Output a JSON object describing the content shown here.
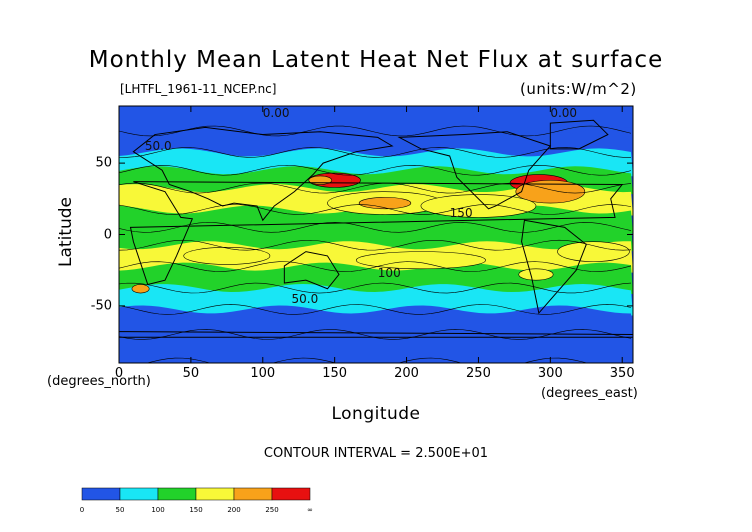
{
  "chart_data": {
    "type": "heatmap",
    "title": "Monthly Mean Latent Heat Net Flux at surface",
    "file": "[LHTFL_1961-11_NCEP.nc]",
    "units": "(units:W/m^2)",
    "xlabel": "Longitude",
    "ylabel": "Latitude",
    "x_unit_label": "(degrees_east)",
    "y_unit_label": "(degrees_north)",
    "xlim": [
      0,
      357.5
    ],
    "ylim": [
      -90,
      90
    ],
    "x_ticks": [
      0,
      50,
      100,
      150,
      200,
      250,
      300,
      350
    ],
    "y_ticks": [
      50,
      0,
      -50
    ],
    "contour_interval_text": "CONTOUR INTERVAL = 2.500E+01",
    "contour_labels": [
      "0.00",
      "0.00",
      "150",
      "100",
      "50.0",
      "50.0"
    ],
    "colorbar": {
      "boundaries": [
        "0",
        "50",
        "100",
        "150",
        "200",
        "250",
        "∞"
      ],
      "colors": [
        "#2255e6",
        "#19e6f5",
        "#22d22a",
        "#f8f838",
        "#f8a21a",
        "#e81010"
      ]
    },
    "bands": [
      {
        "lat": 80,
        "value": 10
      },
      {
        "lat": 65,
        "value": 35
      },
      {
        "lat": 50,
        "value": 65
      },
      {
        "lat": 40,
        "value": 120
      },
      {
        "lat": 25,
        "value": 175
      },
      {
        "lat": 10,
        "value": 130
      },
      {
        "lat": 0,
        "value": 100
      },
      {
        "lat": -15,
        "value": 165
      },
      {
        "lat": -30,
        "value": 120
      },
      {
        "lat": -45,
        "value": 65
      },
      {
        "lat": -60,
        "value": 25
      },
      {
        "lat": -80,
        "value": 5
      }
    ]
  }
}
